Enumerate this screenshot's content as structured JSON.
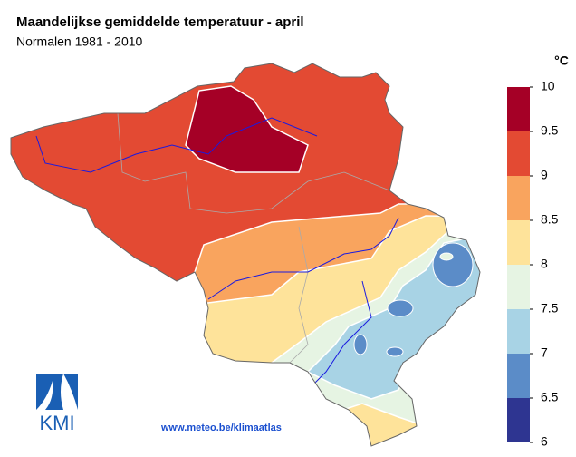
{
  "header": {
    "title": "Maandelijkse gemiddelde temperatuur - april",
    "subtitle": "Normalen 1981 - 2010"
  },
  "legend": {
    "unit": "°C",
    "ticks": [
      10,
      9.5,
      9,
      8.5,
      8,
      7.5,
      7,
      6.5,
      6
    ],
    "colors": [
      "#a50026",
      "#e34a33",
      "#f9a45e",
      "#fee39a",
      "#e6f4e3",
      "#a8d3e5",
      "#5b8cc8",
      "#2e3591"
    ]
  },
  "footer": {
    "source": "www.meteo.be/klimaatlas",
    "logo": "KMI"
  }
}
